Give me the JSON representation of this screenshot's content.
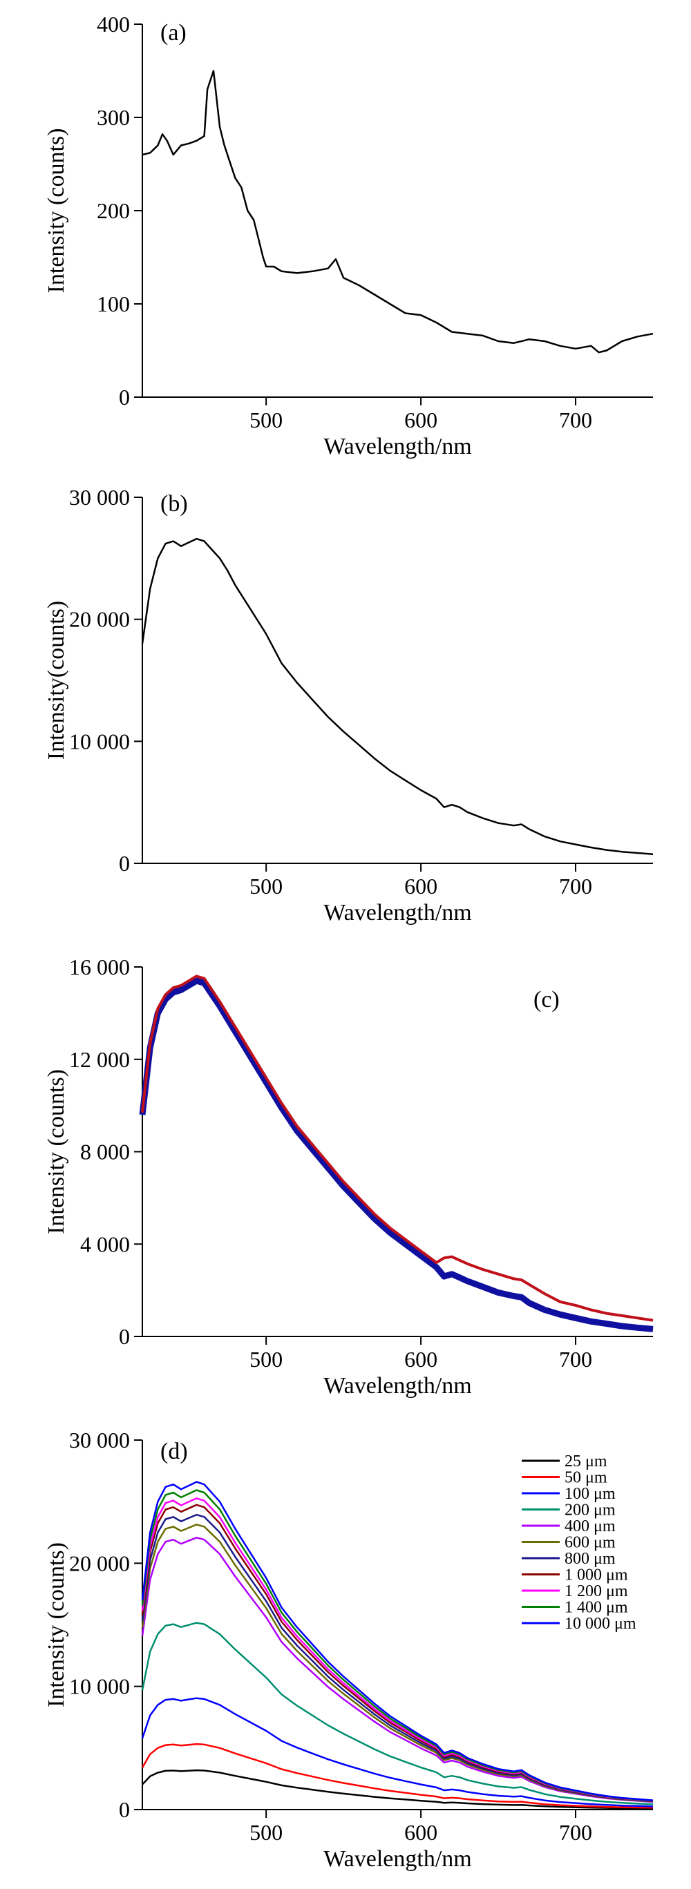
{
  "chart_data": [
    {
      "panel": "(a)",
      "type": "line",
      "xlabel": "Wavelength/nm",
      "ylabel": "Intensity (counts)",
      "xlim": [
        420,
        750
      ],
      "ylim": [
        0,
        400
      ],
      "xticks": [
        500,
        600,
        700
      ],
      "yticks": [
        0,
        100,
        200,
        300,
        400
      ],
      "ytick_labels": [
        "0",
        "100",
        "200",
        "300",
        "400"
      ],
      "series": [
        {
          "color": "#000000",
          "x": [
            420,
            425,
            430,
            433,
            436,
            440,
            445,
            450,
            455,
            460,
            462,
            464,
            466,
            468,
            470,
            473,
            476,
            480,
            484,
            488,
            492,
            495,
            498,
            500,
            505,
            510,
            520,
            530,
            540,
            545,
            550,
            560,
            570,
            580,
            590,
            600,
            610,
            620,
            630,
            640,
            650,
            660,
            670,
            680,
            690,
            700,
            710,
            715,
            720,
            730,
            740,
            750
          ],
          "y": [
            260,
            262,
            270,
            282,
            275,
            260,
            270,
            272,
            275,
            280,
            330,
            340,
            350,
            320,
            290,
            270,
            255,
            235,
            225,
            200,
            190,
            170,
            150,
            140,
            140,
            135,
            133,
            135,
            138,
            148,
            128,
            120,
            110,
            100,
            90,
            88,
            80,
            70,
            68,
            66,
            60,
            58,
            62,
            60,
            55,
            52,
            55,
            48,
            50,
            60,
            65,
            68
          ]
        }
      ]
    },
    {
      "panel": "(b)",
      "type": "line",
      "xlabel": "Wavelength/nm",
      "ylabel": "Intensity(counts)",
      "xlim": [
        420,
        750
      ],
      "ylim": [
        0,
        30000
      ],
      "xticks": [
        500,
        600,
        700
      ],
      "yticks": [
        0,
        10000,
        20000,
        30000
      ],
      "ytick_labels": [
        "0",
        "10 000",
        "20 000",
        "30 000"
      ],
      "series": [
        {
          "color": "#000000",
          "x": [
            420,
            425,
            430,
            435,
            440,
            445,
            450,
            455,
            460,
            465,
            470,
            475,
            480,
            490,
            500,
            510,
            520,
            530,
            540,
            550,
            560,
            570,
            580,
            590,
            600,
            610,
            615,
            620,
            625,
            630,
            640,
            650,
            660,
            665,
            670,
            680,
            690,
            700,
            710,
            720,
            730,
            740,
            750
          ],
          "y": [
            18000,
            22500,
            25000,
            26200,
            26400,
            26000,
            26300,
            26600,
            26400,
            25700,
            25000,
            24000,
            22800,
            20800,
            18800,
            16400,
            14800,
            13400,
            12000,
            10800,
            9700,
            8600,
            7600,
            6800,
            6000,
            5300,
            4600,
            4800,
            4600,
            4200,
            3700,
            3300,
            3100,
            3200,
            2800,
            2200,
            1800,
            1550,
            1300,
            1100,
            950,
            850,
            750
          ]
        }
      ]
    },
    {
      "panel": "(c)",
      "type": "line",
      "xlabel": "Wavelength/nm",
      "ylabel": "Intensity (counts)",
      "xlim": [
        420,
        750
      ],
      "ylim": [
        0,
        16000
      ],
      "xticks": [
        500,
        600,
        700
      ],
      "yticks": [
        0,
        4000,
        8000,
        12000,
        16000
      ],
      "ytick_labels": [
        "0",
        "4 000",
        "8 000",
        "12 000",
        "16 000"
      ],
      "series": [
        {
          "color": "#1010a0",
          "x": [
            420,
            425,
            430,
            435,
            440,
            445,
            450,
            455,
            460,
            465,
            470,
            480,
            490,
            500,
            510,
            520,
            530,
            540,
            550,
            560,
            570,
            580,
            590,
            600,
            610,
            615,
            620,
            625,
            630,
            640,
            650,
            660,
            665,
            670,
            680,
            690,
            700,
            710,
            720,
            730,
            740,
            750
          ],
          "y": [
            9600,
            12500,
            14000,
            14600,
            14900,
            15000,
            15200,
            15400,
            15300,
            14800,
            14300,
            13200,
            12100,
            11000,
            9900,
            8900,
            8100,
            7300,
            6500,
            5800,
            5100,
            4500,
            4000,
            3500,
            3000,
            2600,
            2700,
            2550,
            2400,
            2150,
            1900,
            1750,
            1700,
            1450,
            1150,
            950,
            800,
            650,
            550,
            450,
            380,
            320
          ]
        },
        {
          "color": "#c0101a",
          "x": [
            420,
            425,
            430,
            435,
            440,
            445,
            450,
            455,
            460,
            465,
            470,
            480,
            490,
            500,
            510,
            520,
            530,
            540,
            550,
            560,
            570,
            580,
            590,
            600,
            610,
            615,
            620,
            625,
            630,
            640,
            650,
            660,
            665,
            670,
            680,
            690,
            700,
            710,
            720,
            730,
            740,
            750
          ],
          "y": [
            9700,
            12700,
            14200,
            14800,
            15100,
            15200,
            15400,
            15600,
            15500,
            15000,
            14500,
            13400,
            12300,
            11200,
            10100,
            9100,
            8300,
            7500,
            6700,
            6000,
            5300,
            4700,
            4200,
            3700,
            3200,
            3400,
            3450,
            3300,
            3150,
            2900,
            2700,
            2500,
            2450,
            2250,
            1850,
            1500,
            1350,
            1150,
            1000,
            900,
            800,
            700
          ]
        }
      ]
    },
    {
      "panel": "(d)",
      "type": "line",
      "xlabel": "Wavelength/nm",
      "ylabel": "Intensity (counts)",
      "xlim": [
        420,
        750
      ],
      "ylim": [
        0,
        30000
      ],
      "xticks": [
        500,
        600,
        700
      ],
      "yticks": [
        0,
        10000,
        20000,
        30000
      ],
      "ytick_labels": [
        "0",
        "10 000",
        "20 000",
        "30 000"
      ],
      "series": [
        {
          "name": "25 μm",
          "color": "#000000",
          "scale": 0.12
        },
        {
          "name": "50 μm",
          "color": "#ff0000",
          "scale": 0.2
        },
        {
          "name": "100 μm",
          "color": "#0000ff",
          "scale": 0.34
        },
        {
          "name": "200 μm",
          "color": "#008f6f",
          "scale": 0.57
        },
        {
          "name": "400 μm",
          "color": "#b000ff",
          "scale": 0.83
        },
        {
          "name": "600 μm",
          "color": "#6b6b00",
          "scale": 0.87
        },
        {
          "name": "800 μm",
          "color": "#1a1a8c",
          "scale": 0.9
        },
        {
          "name": "1 000 μm",
          "color": "#8b0000",
          "scale": 0.93
        },
        {
          "name": "1 200 μm",
          "color": "#ff00ff",
          "scale": 0.95
        },
        {
          "name": "1 400 μm",
          "color": "#008000",
          "scale": 0.975
        },
        {
          "name": "10 000 μm",
          "color": "#0000ff",
          "scale": 1.0
        }
      ],
      "base_shape": {
        "x": [
          420,
          425,
          430,
          435,
          440,
          445,
          450,
          455,
          460,
          465,
          470,
          480,
          490,
          500,
          510,
          520,
          530,
          540,
          550,
          560,
          570,
          580,
          590,
          600,
          610,
          615,
          620,
          625,
          630,
          640,
          650,
          660,
          665,
          670,
          680,
          690,
          700,
          710,
          720,
          730,
          740,
          750
        ],
        "y": [
          17000,
          22500,
          25000,
          26200,
          26400,
          26000,
          26300,
          26600,
          26400,
          25700,
          25000,
          22800,
          20800,
          18800,
          16400,
          14800,
          13400,
          12000,
          10800,
          9700,
          8600,
          7600,
          6800,
          6000,
          5300,
          4600,
          4800,
          4600,
          4200,
          3700,
          3300,
          3100,
          3200,
          2800,
          2200,
          1800,
          1550,
          1300,
          1100,
          950,
          850,
          750
        ]
      }
    }
  ]
}
